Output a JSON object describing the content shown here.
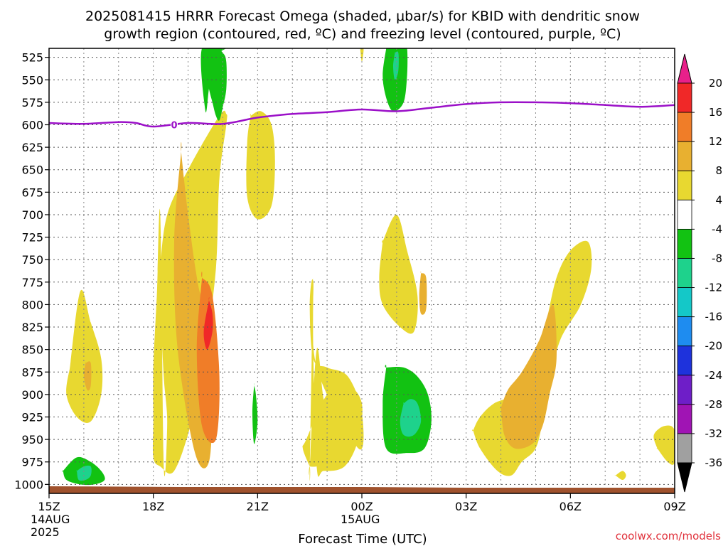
{
  "chart_data": {
    "type": "heatmap",
    "title_lines": [
      "2025081415 HRRR Forecast Omega (shaded, μbar/s) for KBID with dendritic snow",
      "growth region (contoured, red, ºC) and freezing level (contoured, purple, ºC)"
    ],
    "xlabel": "Forecast Time (UTC)",
    "ylabel": "",
    "y_scale": "pressure (inverted, linear)",
    "ylim": [
      1010,
      515
    ],
    "y_ticks": [
      525,
      550,
      575,
      600,
      625,
      650,
      675,
      700,
      725,
      750,
      775,
      800,
      825,
      850,
      875,
      900,
      925,
      950,
      975,
      1000
    ],
    "x_ticks": [
      {
        "t": 0,
        "label": "15Z",
        "sub": [
          "14AUG",
          "2025"
        ]
      },
      {
        "t": 3,
        "label": "18Z",
        "sub": []
      },
      {
        "t": 6,
        "label": "21Z",
        "sub": []
      },
      {
        "t": 9,
        "label": "00Z",
        "sub": [
          "15AUG"
        ]
      },
      {
        "t": 12,
        "label": "03Z",
        "sub": []
      },
      {
        "t": 15,
        "label": "06Z",
        "sub": []
      },
      {
        "t": 18,
        "label": "09Z",
        "sub": []
      }
    ],
    "grid": true,
    "legend": "right colorbar",
    "colorbar": {
      "labels": [
        "20",
        "16",
        "12",
        "8",
        "4",
        "-4",
        "-8",
        "-12",
        "-16",
        "-20",
        "-24",
        "-28",
        "-32",
        "-36"
      ],
      "bins": [
        "#e8208a",
        "#f02828",
        "#f07d28",
        "#e8b030",
        "#e8d830",
        "#ffffff",
        "#12c212",
        "#1ed28c",
        "#14c8c8",
        "#1e8cf0",
        "#1e32dc",
        "#6e1ec8",
        "#a014b4",
        "#a0a0a0",
        "#000000"
      ]
    },
    "freezing_level_color": "#9b10c8",
    "terrain_color": "#a0522d",
    "freezing_level": {
      "t": [
        0,
        1,
        2,
        2.5,
        3,
        4,
        5,
        6,
        7,
        8,
        9,
        10,
        11,
        12,
        13,
        14,
        15,
        16,
        17,
        18
      ],
      "p": [
        598,
        599,
        597,
        598,
        602,
        598,
        599,
        592,
        588,
        586,
        583,
        585,
        581,
        577,
        575,
        575,
        576,
        578,
        580,
        578
      ]
    },
    "freezing_level_label": "0",
    "omega_regions": [
      {
        "bin": 4,
        "t": [
          3.3,
          3.4,
          3.3,
          3.2,
          3.2,
          3.4,
          4.0,
          4.9,
          5.1,
          5.1,
          4.9,
          4.8,
          4.5,
          4.1,
          3.6,
          3.2,
          3.0,
          3.0,
          3.0,
          3.1,
          3.2
        ],
        "p": [
          980,
          930,
          880,
          800,
          760,
          700,
          650,
          590,
          588,
          600,
          660,
          760,
          850,
          930,
          985,
          980,
          970,
          930,
          870,
          790,
          700
        ]
      },
      {
        "bin": 3,
        "t": [
          3.8,
          3.6,
          3.7,
          4.2,
          4.6,
          4.7,
          4.6,
          4.3,
          4.0,
          3.8
        ],
        "p": [
          630,
          730,
          850,
          965,
          975,
          900,
          820,
          780,
          700,
          630
        ]
      },
      {
        "bin": 2,
        "t": [
          4.4,
          4.25,
          4.4,
          4.8,
          4.9,
          4.7,
          4.4
        ],
        "p": [
          770,
          850,
          935,
          950,
          880,
          790,
          770
        ]
      },
      {
        "bin": 1,
        "t": [
          4.6,
          4.45,
          4.55,
          4.7,
          4.7,
          4.6
        ],
        "p": [
          795,
          830,
          850,
          830,
          810,
          795
        ]
      },
      {
        "bin": 4,
        "t": [
          0.6,
          0.5,
          0.8,
          1.2,
          1.5,
          1.5,
          1.2,
          0.9,
          0.6
        ],
        "p": [
          870,
          900,
          925,
          930,
          900,
          860,
          820,
          785,
          870
        ]
      },
      {
        "bin": 3,
        "t": [
          1.05,
          1.0,
          1.1,
          1.2,
          1.2,
          1.05
        ],
        "p": [
          865,
          880,
          895,
          890,
          865,
          865
        ]
      },
      {
        "bin": 4,
        "t": [
          5.8,
          5.7,
          5.7,
          6.0,
          6.4,
          6.5,
          6.4,
          6.1,
          5.8
        ],
        "p": [
          590,
          620,
          680,
          705,
          690,
          640,
          600,
          585,
          590
        ]
      },
      {
        "bin": 4,
        "t": [
          7.5,
          7.7,
          8.4,
          8.2,
          7.9,
          7.7,
          7.5
        ],
        "p": [
          980,
          980,
          975,
          950,
          905,
          850,
          980
        ]
      },
      {
        "bin": 4,
        "t": [
          7.5,
          7.3,
          7.4,
          8.0,
          8.6,
          9.0,
          8.9,
          8.5,
          7.9,
          7.7,
          7.6,
          7.6,
          7.5
        ],
        "p": [
          980,
          960,
          950,
          900,
          890,
          910,
          950,
          980,
          985,
          980,
          850,
          775,
          980
        ]
      },
      {
        "bin": 4,
        "t": [
          8.9,
          9.0,
          8.6,
          8.0,
          7.6,
          7.5,
          7.6,
          7.7
        ],
        "p": [
          960,
          920,
          880,
          870,
          860,
          800,
          775,
          870
        ]
      },
      {
        "bin": 4,
        "t": [
          9.6,
          9.5,
          9.6,
          10.1,
          10.5,
          10.6,
          10.3,
          10.0,
          9.6
        ],
        "p": [
          730,
          770,
          800,
          825,
          830,
          790,
          740,
          700,
          730
        ]
      },
      {
        "bin": 3,
        "t": [
          10.7,
          10.65,
          10.7,
          10.85,
          10.85,
          10.7
        ],
        "p": [
          765,
          790,
          810,
          805,
          770,
          765
        ]
      },
      {
        "bin": 4,
        "t": [
          12.2,
          12.4,
          12.9,
          13.3,
          13.6,
          14.0,
          14.2,
          14.4,
          14.7,
          15.3,
          15.6,
          15.5,
          15.0,
          14.6,
          14.3,
          14.0,
          13.6,
          13.4,
          12.8,
          12.4,
          12.2
        ],
        "p": [
          940,
          960,
          985,
          990,
          975,
          960,
          930,
          890,
          840,
          800,
          760,
          730,
          740,
          770,
          820,
          860,
          880,
          900,
          910,
          925,
          940
        ]
      },
      {
        "bin": 3,
        "t": [
          13.0,
          13.1,
          13.4,
          13.9,
          14.2,
          14.4,
          14.6,
          14.5,
          14.1,
          13.6,
          13.2,
          13.0
        ],
        "p": [
          915,
          945,
          960,
          955,
          935,
          900,
          860,
          800,
          840,
          875,
          895,
          915
        ]
      },
      {
        "bin": 4,
        "t": [
          17.5,
          17.8,
          18.0,
          18.0,
          17.7,
          17.4,
          17.5
        ],
        "p": [
          960,
          975,
          975,
          940,
          935,
          945,
          960
        ]
      },
      {
        "bin": 4,
        "t": [
          16.3,
          16.5,
          16.6,
          16.5,
          16.3
        ],
        "p": [
          990,
          995,
          990,
          985,
          990
        ]
      },
      {
        "bin": 4,
        "t": [
          8.95,
          9.0,
          9.05,
          8.95
        ],
        "p": [
          515,
          530,
          515,
          515
        ]
      },
      {
        "bin": 6,
        "t": [
          5.1,
          4.9,
          4.8,
          4.7,
          4.6,
          4.5,
          4.4,
          5.1
        ],
        "p": [
          515,
          520,
          530,
          540,
          560,
          585,
          515,
          515
        ]
      },
      {
        "bin": 6,
        "t": [
          4.4,
          4.5,
          4.6,
          4.7,
          4.8,
          4.9,
          5.0,
          5.1,
          5.1,
          5.0,
          4.8,
          4.4
        ],
        "p": [
          515,
          540,
          560,
          575,
          590,
          595,
          580,
          560,
          530,
          520,
          515,
          515
        ]
      },
      {
        "bin": 6,
        "t": [
          5.9,
          5.85,
          5.9,
          6.0,
          5.95,
          5.9
        ],
        "p": [
          890,
          920,
          955,
          930,
          900,
          890
        ]
      },
      {
        "bin": 6,
        "t": [
          9.7,
          9.6,
          9.7,
          9.9,
          10.2,
          10.3,
          10.3,
          10.2,
          9.7
        ],
        "p": [
          515,
          545,
          570,
          585,
          575,
          545,
          515,
          515,
          515
        ]
      },
      {
        "bin": 7,
        "t": [
          9.95,
          9.9,
          9.95,
          10.05,
          10.05,
          9.95
        ],
        "p": [
          520,
          535,
          550,
          540,
          520,
          520
        ]
      },
      {
        "bin": 6,
        "t": [
          9.7,
          9.6,
          9.7,
          10.3,
          10.8,
          11.0,
          10.9,
          10.6,
          10.2,
          9.7
        ],
        "p": [
          870,
          910,
          960,
          965,
          960,
          930,
          900,
          880,
          870,
          870
        ]
      },
      {
        "bin": 7,
        "t": [
          10.2,
          10.1,
          10.2,
          10.5,
          10.7,
          10.6,
          10.4,
          10.2
        ],
        "p": [
          910,
          930,
          945,
          945,
          930,
          910,
          905,
          910
        ]
      },
      {
        "bin": 6,
        "t": [
          0.4,
          0.5,
          0.9,
          1.3,
          1.6,
          1.5,
          1.2,
          0.8,
          0.4
        ],
        "p": [
          985,
          995,
          1000,
          1000,
          995,
          985,
          975,
          970,
          985
        ]
      },
      {
        "bin": 7,
        "t": [
          0.8,
          0.85,
          1.05,
          1.2,
          1.2,
          1.0,
          0.8
        ],
        "p": [
          985,
          995,
          995,
          990,
          980,
          980,
          985
        ]
      }
    ],
    "terrain_p": 1005,
    "credit": "coolwx.com/models"
  }
}
